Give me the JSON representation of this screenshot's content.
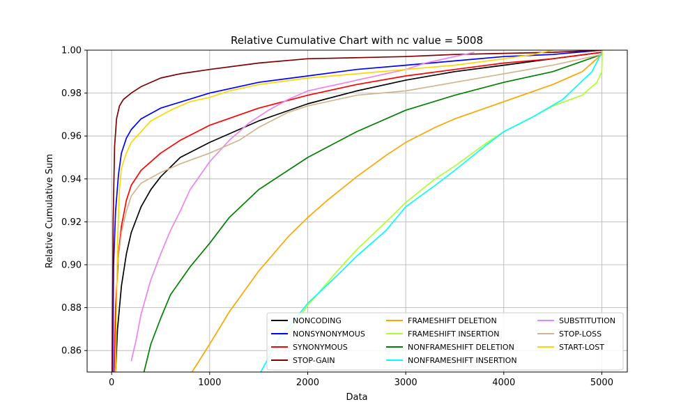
{
  "chart_data": {
    "type": "line",
    "title": "Relative Cumulative Chart with nc value = 5008",
    "xlabel": "Data",
    "ylabel": "Relative Cumulative Sum",
    "xlim": [
      -250,
      5260
    ],
    "ylim": [
      0.85,
      1.0
    ],
    "xticks": [
      0,
      1000,
      2000,
      3000,
      4000,
      5000
    ],
    "yticks": [
      0.86,
      0.88,
      0.9,
      0.92,
      0.94,
      0.96,
      0.98,
      1.0
    ],
    "xtick_labels": [
      "0",
      "1000",
      "2000",
      "3000",
      "4000",
      "5000"
    ],
    "ytick_labels": [
      "0.86",
      "0.88",
      "0.90",
      "0.92",
      "0.94",
      "0.96",
      "0.98",
      "1.00"
    ],
    "grid": true,
    "legend_position": "lower-right",
    "legend_columns": 3,
    "series": [
      {
        "name": "NONCODING",
        "color": "#000000",
        "x": [
          40,
          60,
          100,
          150,
          200,
          300,
          400,
          500,
          700,
          1000,
          1500,
          2000,
          2500,
          3000,
          3500,
          4000,
          4500,
          5000
        ],
        "y": [
          0.85,
          0.87,
          0.89,
          0.905,
          0.915,
          0.927,
          0.935,
          0.941,
          0.95,
          0.957,
          0.967,
          0.975,
          0.981,
          0.986,
          0.99,
          0.993,
          0.996,
          0.999
        ]
      },
      {
        "name": "NONSYNONYMOUS",
        "color": "#0000ff",
        "x": [
          10,
          20,
          40,
          70,
          100,
          150,
          200,
          300,
          500,
          1000,
          1500,
          2000,
          2500,
          3000,
          3500,
          4000,
          4500,
          5000
        ],
        "y": [
          0.85,
          0.9,
          0.925,
          0.942,
          0.952,
          0.959,
          0.963,
          0.968,
          0.973,
          0.98,
          0.985,
          0.988,
          0.991,
          0.993,
          0.995,
          0.997,
          0.998,
          1.0
        ]
      },
      {
        "name": "SYNONYMOUS",
        "color": "#ff0000",
        "x": [
          25,
          40,
          70,
          100,
          150,
          200,
          300,
          500,
          700,
          1000,
          1500,
          2000,
          2500,
          3000,
          3500,
          4000,
          4500,
          5000
        ],
        "y": [
          0.85,
          0.88,
          0.905,
          0.918,
          0.93,
          0.937,
          0.944,
          0.952,
          0.958,
          0.965,
          0.973,
          0.979,
          0.984,
          0.988,
          0.991,
          0.994,
          0.996,
          0.999
        ]
      },
      {
        "name": "STOP-GAIN",
        "color": "#800000",
        "x": [
          5,
          15,
          30,
          50,
          80,
          120,
          200,
          300,
          500,
          700,
          1000,
          1500,
          2000,
          2500,
          3000,
          3500,
          4000,
          4500,
          5000
        ],
        "y": [
          0.85,
          0.92,
          0.955,
          0.968,
          0.974,
          0.977,
          0.98,
          0.983,
          0.987,
          0.989,
          0.991,
          0.994,
          0.996,
          0.9965,
          0.997,
          0.998,
          0.9985,
          0.999,
          1.0
        ]
      },
      {
        "name": "FRAMESHIFT DELETION",
        "color": "#ffa500",
        "x": [
          820,
          1000,
          1200,
          1500,
          1800,
          2000,
          2200,
          2500,
          2800,
          3000,
          3300,
          3500,
          4000,
          4500,
          4800,
          5000
        ],
        "y": [
          0.85,
          0.863,
          0.878,
          0.897,
          0.913,
          0.922,
          0.93,
          0.941,
          0.951,
          0.957,
          0.964,
          0.968,
          0.976,
          0.984,
          0.99,
          0.998
        ]
      },
      {
        "name": "FRAMESHIFT INSERTION",
        "color": "#adff2f",
        "x": [
          1750,
          2000,
          2300,
          2500,
          2800,
          3000,
          3300,
          3500,
          3800,
          4000,
          4300,
          4500,
          4800,
          4950,
          5000,
          5005
        ],
        "y": [
          0.865,
          0.881,
          0.897,
          0.907,
          0.92,
          0.929,
          0.94,
          0.946,
          0.956,
          0.962,
          0.969,
          0.974,
          0.979,
          0.985,
          0.99,
          1.0
        ]
      },
      {
        "name": "NONFRAMESHIFT DELETION",
        "color": "#008000",
        "x": [
          330,
          400,
          500,
          600,
          800,
          1000,
          1200,
          1500,
          2000,
          2500,
          3000,
          3500,
          4000,
          4500,
          5000
        ],
        "y": [
          0.85,
          0.863,
          0.875,
          0.886,
          0.899,
          0.91,
          0.922,
          0.935,
          0.95,
          0.962,
          0.972,
          0.979,
          0.985,
          0.99,
          0.998
        ]
      },
      {
        "name": "NONFRAMESHIFT INSERTION",
        "color": "#00ffff",
        "x": [
          1520,
          1700,
          2000,
          2300,
          2500,
          2800,
          3000,
          3300,
          3500,
          3800,
          4000,
          4300,
          4600,
          4900,
          5000
        ],
        "y": [
          0.85,
          0.865,
          0.882,
          0.895,
          0.904,
          0.916,
          0.927,
          0.937,
          0.944,
          0.955,
          0.962,
          0.969,
          0.977,
          0.99,
          0.999
        ]
      },
      {
        "name": "SUBSTITUTION",
        "color": "#ee82ee",
        "x": [
          200,
          250,
          300,
          400,
          500,
          600,
          700,
          800,
          1000,
          1200,
          1400,
          1600,
          1800,
          2000,
          2500,
          3000,
          3200,
          3500,
          3700
        ],
        "y": [
          0.855,
          0.865,
          0.877,
          0.893,
          0.905,
          0.916,
          0.925,
          0.935,
          0.948,
          0.958,
          0.966,
          0.972,
          0.977,
          0.981,
          0.986,
          0.991,
          0.994,
          0.997,
          0.999
        ]
      },
      {
        "name": "STOP-LOSS",
        "color": "#d2b48c",
        "x": [
          60,
          100,
          150,
          200,
          300,
          500,
          700,
          1000,
          1300,
          1500,
          1800,
          2000,
          2500,
          3000,
          3500,
          4000,
          4500,
          5000
        ],
        "y": [
          0.9,
          0.915,
          0.925,
          0.932,
          0.938,
          0.943,
          0.947,
          0.952,
          0.958,
          0.964,
          0.971,
          0.974,
          0.979,
          0.981,
          0.985,
          0.989,
          0.993,
          0.998
        ]
      },
      {
        "name": "START-LOST",
        "color": "#ffd700",
        "x": [
          40,
          60,
          80,
          100,
          150,
          200,
          300,
          400,
          600,
          800,
          1000,
          1200,
          1500,
          2000,
          2500,
          3000,
          3500,
          4000,
          4300,
          4500
        ],
        "y": [
          0.85,
          0.91,
          0.935,
          0.945,
          0.952,
          0.957,
          0.962,
          0.967,
          0.972,
          0.976,
          0.978,
          0.981,
          0.984,
          0.987,
          0.989,
          0.991,
          0.993,
          0.996,
          0.998,
          1.0
        ]
      }
    ]
  }
}
